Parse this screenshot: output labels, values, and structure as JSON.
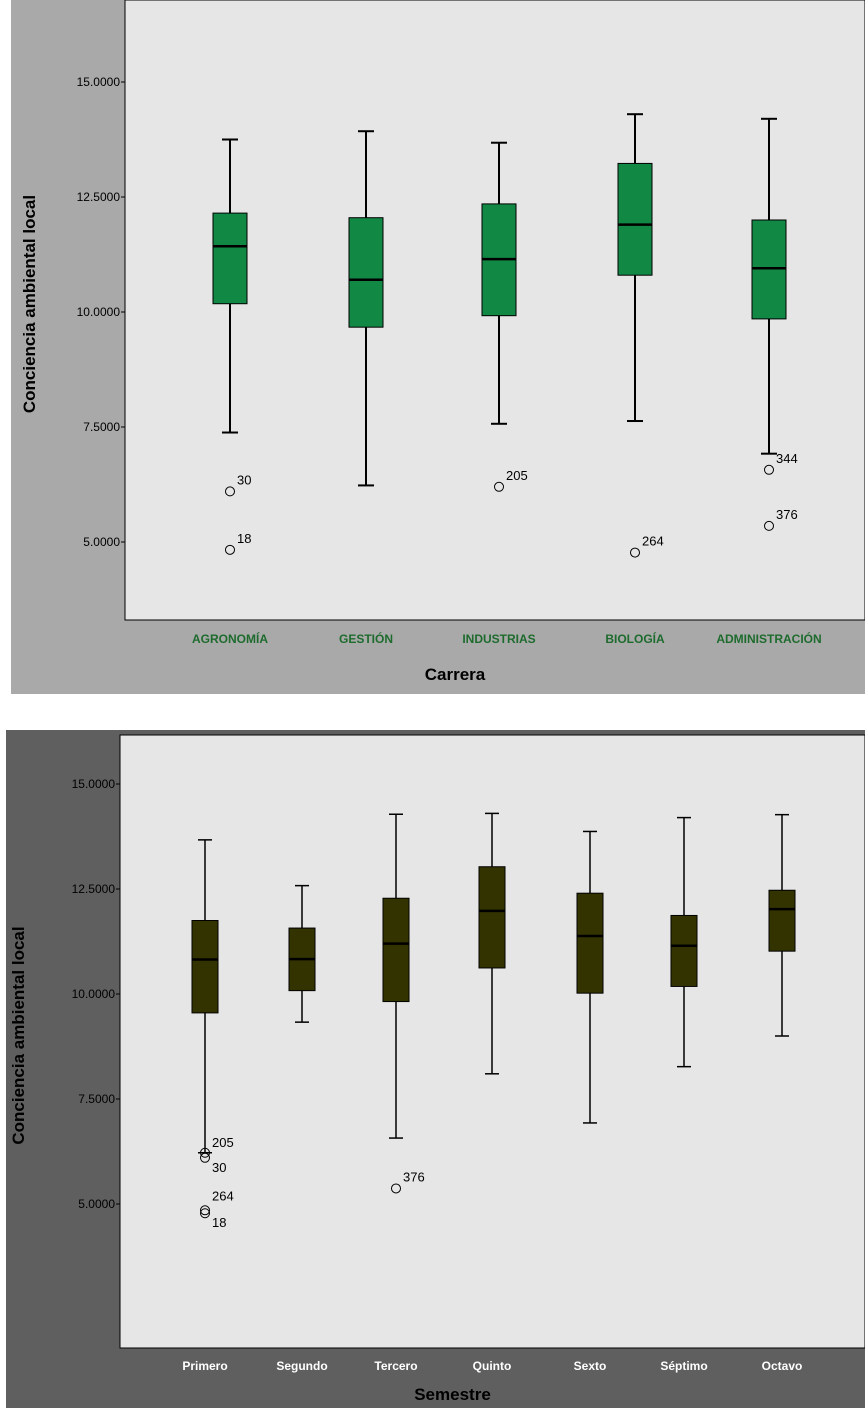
{
  "chart_data": [
    {
      "type": "boxplot",
      "xlabel": "Carrera",
      "ylabel": "Conciencia ambiental local",
      "yticks": [
        "5.0000",
        "7.5000",
        "10.0000",
        "12.5000",
        "15.0000"
      ],
      "ylim": [
        3.5,
        16.5
      ],
      "box_color": "#118844",
      "category_label_color": "#1e6b2e",
      "xlabel_color": "#000000",
      "ylabel_color": "#000000",
      "categories": [
        "AGRONOMÍA",
        "GESTIÓN",
        "INDUSTRIAS",
        "BIOLOGÍA",
        "ADMINISTRACIÓN"
      ],
      "boxes": [
        {
          "min": 7.38,
          "q1": 10.18,
          "median": 11.43,
          "q3": 12.15,
          "max": 13.75,
          "outliers": [
            {
              "value": 6.1,
              "label": "30"
            },
            {
              "value": 4.83,
              "label": "18"
            }
          ]
        },
        {
          "min": 6.23,
          "q1": 9.67,
          "median": 10.7,
          "q3": 12.05,
          "max": 13.93,
          "outliers": []
        },
        {
          "min": 7.57,
          "q1": 9.92,
          "median": 11.15,
          "q3": 12.35,
          "max": 13.68,
          "outliers": [
            {
              "value": 6.2,
              "label": "205"
            }
          ]
        },
        {
          "min": 7.63,
          "q1": 10.8,
          "median": 11.9,
          "q3": 13.23,
          "max": 14.3,
          "outliers": [
            {
              "value": 4.77,
              "label": "264"
            }
          ]
        },
        {
          "min": 6.92,
          "q1": 9.85,
          "median": 10.95,
          "q3": 12.0,
          "max": 14.2,
          "outliers": [
            {
              "value": 6.57,
              "label": "344"
            },
            {
              "value": 5.35,
              "label": "376"
            }
          ]
        }
      ]
    },
    {
      "type": "boxplot",
      "xlabel": "Semestre",
      "ylabel": "Conciencia ambiental local",
      "yticks": [
        "5.0000",
        "7.5000",
        "10.0000",
        "12.5000",
        "15.0000"
      ],
      "ylim": [
        3.5,
        16.5
      ],
      "box_color": "#333300",
      "category_label_color": "#ffffff",
      "xlabel_color": "#000000",
      "ylabel_color": "#000000",
      "categories": [
        "Primero",
        "Segundo",
        "Tercero",
        "Quinto",
        "Sexto",
        "Séptimo",
        "Octavo"
      ],
      "boxes": [
        {
          "min": 6.22,
          "q1": 9.55,
          "median": 10.82,
          "q3": 11.75,
          "max": 13.67,
          "outliers": [
            {
              "value": 6.22,
              "label": "205"
            },
            {
              "value": 6.1,
              "label": "30"
            },
            {
              "value": 4.85,
              "label": "264"
            },
            {
              "value": 4.78,
              "label": "18"
            }
          ]
        },
        {
          "min": 9.33,
          "q1": 10.08,
          "median": 10.83,
          "q3": 11.57,
          "max": 12.58,
          "outliers": []
        },
        {
          "min": 6.57,
          "q1": 9.82,
          "median": 11.2,
          "q3": 12.28,
          "max": 14.28,
          "outliers": [
            {
              "value": 5.37,
              "label": "376"
            }
          ]
        },
        {
          "min": 8.1,
          "q1": 10.62,
          "median": 11.98,
          "q3": 13.03,
          "max": 14.3,
          "outliers": []
        },
        {
          "min": 6.93,
          "q1": 10.02,
          "median": 11.38,
          "q3": 12.4,
          "max": 13.87,
          "outliers": []
        },
        {
          "min": 8.27,
          "q1": 10.18,
          "median": 11.15,
          "q3": 11.87,
          "max": 14.2,
          "outliers": []
        },
        {
          "min": 9.0,
          "q1": 11.02,
          "median": 12.02,
          "q3": 12.47,
          "max": 14.27,
          "outliers": []
        }
      ]
    }
  ]
}
